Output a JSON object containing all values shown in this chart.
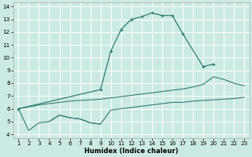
{
  "xlabel": "Humidex (Indice chaleur)",
  "bg_color": "#cceae4",
  "grid_color": "#ffffff",
  "line_color": "#2e7d6e",
  "x_values": [
    1,
    2,
    3,
    4,
    5,
    6,
    7,
    8,
    9,
    10,
    11,
    12,
    13,
    14,
    15,
    16,
    17,
    18,
    19,
    20,
    21,
    22,
    23
  ],
  "peak_y": [
    6.0,
    null,
    null,
    null,
    null,
    null,
    null,
    null,
    7.5,
    10.5,
    12.2,
    13.0,
    13.2,
    13.5,
    13.3,
    13.3,
    11.9,
    null,
    9.3,
    9.5,
    null,
    null,
    null
  ],
  "upper_y": [
    6.0,
    6.15,
    6.3,
    6.4,
    6.5,
    6.6,
    6.65,
    6.7,
    6.75,
    6.85,
    6.95,
    7.05,
    7.15,
    7.25,
    7.35,
    7.45,
    7.55,
    7.7,
    7.9,
    8.5,
    8.3,
    8.0,
    7.8
  ],
  "lower_y": [
    6.0,
    4.3,
    4.9,
    5.0,
    5.5,
    5.3,
    5.2,
    4.9,
    4.8,
    5.9,
    6.0,
    6.1,
    6.2,
    6.3,
    6.4,
    6.5,
    6.5,
    6.6,
    6.65,
    6.7,
    6.75,
    6.8,
    6.9
  ],
  "mid_y": [
    null,
    null,
    null,
    5.0,
    5.5,
    5.3,
    5.2,
    4.9,
    4.8,
    null,
    null,
    null,
    null,
    null,
    null,
    null,
    null,
    null,
    null,
    null,
    null,
    null,
    null
  ],
  "ylim_min": 4,
  "ylim_max": 14,
  "yticks": [
    4,
    5,
    6,
    7,
    8,
    9,
    10,
    11,
    12,
    13,
    14
  ],
  "xticks": [
    1,
    2,
    3,
    4,
    5,
    6,
    7,
    8,
    9,
    10,
    11,
    12,
    13,
    14,
    15,
    16,
    17,
    18,
    19,
    20,
    21,
    22,
    23
  ],
  "xlabel_fontsize": 6.0,
  "tick_fontsize": 5.2
}
